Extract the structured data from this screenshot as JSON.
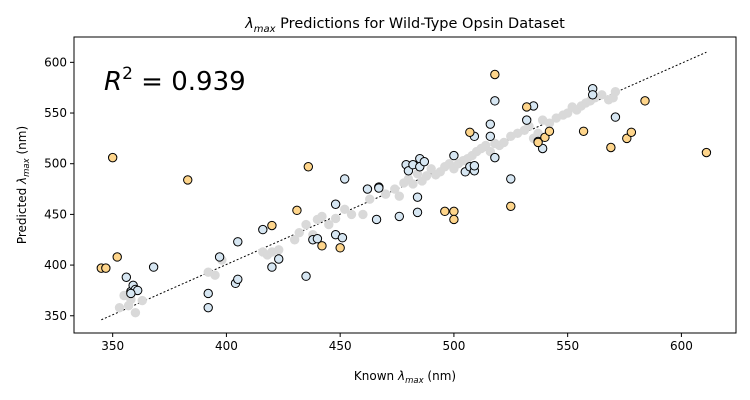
{
  "chart_data": {
    "type": "scatter",
    "title": "λmax Predictions for Wild-Type Opsin Dataset",
    "title_base": "λ",
    "title_sub": "max",
    "title_rest": " Predictions for Wild-Type Opsin Dataset",
    "xlabel": "Known λmax (nm)",
    "xlabel_parts": {
      "pre": "Known ",
      "base": "λ",
      "sub": "max",
      "post": " (nm)"
    },
    "ylabel": "Predicted λmax (nm)",
    "ylabel_parts": {
      "pre": "Predicted ",
      "base": "λ",
      "sub": "max",
      "post": " (nm)"
    },
    "xlim": [
      333,
      624
    ],
    "ylim": [
      333,
      625
    ],
    "x_ticks": [
      350,
      400,
      450,
      500,
      550,
      600
    ],
    "y_ticks": [
      350,
      400,
      450,
      500,
      550,
      600
    ],
    "grid": false,
    "annotation": {
      "base": "R",
      "sup": "2",
      "rest": " = 0.939"
    },
    "reference_line": {
      "style": "dotted",
      "color": "#000000",
      "points": [
        [
          345,
          346
        ],
        [
          611,
          610
        ]
      ]
    },
    "series": [
      {
        "color": "#d9d9d9",
        "edge": "#d9d9d9",
        "points": [
          [
            353,
            358
          ],
          [
            357,
            360
          ],
          [
            360,
            353
          ],
          [
            363,
            365
          ],
          [
            358,
            366
          ],
          [
            355,
            370
          ],
          [
            392,
            393
          ],
          [
            395,
            390
          ],
          [
            398,
            405
          ],
          [
            416,
            413
          ],
          [
            418,
            410
          ],
          [
            420,
            413
          ],
          [
            423,
            415
          ],
          [
            430,
            425
          ],
          [
            432,
            432
          ],
          [
            435,
            440
          ],
          [
            438,
            430
          ],
          [
            440,
            445
          ],
          [
            442,
            448
          ],
          [
            445,
            440
          ],
          [
            448,
            446
          ],
          [
            452,
            455
          ],
          [
            455,
            450
          ],
          [
            460,
            450
          ],
          [
            463,
            465
          ],
          [
            470,
            470
          ],
          [
            474,
            475
          ],
          [
            476,
            468
          ],
          [
            478,
            481
          ],
          [
            480,
            485
          ],
          [
            482,
            480
          ],
          [
            484,
            490
          ],
          [
            486,
            483
          ],
          [
            488,
            488
          ],
          [
            490,
            495
          ],
          [
            492,
            489
          ],
          [
            494,
            492
          ],
          [
            496,
            497
          ],
          [
            498,
            500
          ],
          [
            500,
            495
          ],
          [
            502,
            500
          ],
          [
            504,
            503
          ],
          [
            506,
            505
          ],
          [
            508,
            508
          ],
          [
            510,
            512
          ],
          [
            512,
            515
          ],
          [
            514,
            518
          ],
          [
            516,
            512
          ],
          [
            518,
            520
          ],
          [
            520,
            518
          ],
          [
            522,
            521
          ],
          [
            525,
            527
          ],
          [
            528,
            530
          ],
          [
            531,
            533
          ],
          [
            533,
            537
          ],
          [
            535,
            525
          ],
          [
            537,
            530
          ],
          [
            539,
            543
          ],
          [
            542,
            540
          ],
          [
            545,
            545
          ],
          [
            548,
            548
          ],
          [
            550,
            550
          ],
          [
            552,
            556
          ],
          [
            554,
            553
          ],
          [
            556,
            557
          ],
          [
            558,
            560
          ],
          [
            560,
            562
          ],
          [
            562,
            565
          ],
          [
            565,
            568
          ],
          [
            568,
            563
          ],
          [
            570,
            565
          ],
          [
            571,
            571
          ]
        ]
      },
      {
        "color": "#d6e6f2",
        "edge": "#000000",
        "points": [
          [
            356,
            388
          ],
          [
            358,
            374
          ],
          [
            359,
            380
          ],
          [
            360,
            376
          ],
          [
            361,
            375
          ],
          [
            358,
            372
          ],
          [
            368,
            398
          ],
          [
            392,
            372
          ],
          [
            392,
            358
          ],
          [
            397,
            408
          ],
          [
            404,
            382
          ],
          [
            405,
            386
          ],
          [
            405,
            423
          ],
          [
            416,
            435
          ],
          [
            420,
            398
          ],
          [
            423,
            406
          ],
          [
            435,
            389
          ],
          [
            438,
            425
          ],
          [
            440,
            426
          ],
          [
            448,
            460
          ],
          [
            448,
            430
          ],
          [
            451,
            427
          ],
          [
            452,
            485
          ],
          [
            462,
            475
          ],
          [
            466,
            445
          ],
          [
            467,
            477
          ],
          [
            467,
            476
          ],
          [
            476,
            448
          ],
          [
            479,
            499
          ],
          [
            480,
            493
          ],
          [
            482,
            499
          ],
          [
            484,
            467
          ],
          [
            484,
            452
          ],
          [
            485,
            505
          ],
          [
            485,
            497
          ],
          [
            487,
            502
          ],
          [
            500,
            508
          ],
          [
            505,
            492
          ],
          [
            507,
            497
          ],
          [
            509,
            493
          ],
          [
            509,
            498
          ],
          [
            509,
            527
          ],
          [
            516,
            539
          ],
          [
            516,
            527
          ],
          [
            518,
            562
          ],
          [
            518,
            506
          ],
          [
            525,
            485
          ],
          [
            532,
            543
          ],
          [
            535,
            557
          ],
          [
            537,
            522
          ],
          [
            539,
            515
          ],
          [
            561,
            574
          ],
          [
            561,
            568
          ],
          [
            571,
            546
          ]
        ]
      },
      {
        "color": "#fed58b",
        "edge": "#000000",
        "points": [
          [
            345,
            397
          ],
          [
            347,
            397
          ],
          [
            350,
            506
          ],
          [
            352,
            408
          ],
          [
            383,
            484
          ],
          [
            420,
            439
          ],
          [
            431,
            454
          ],
          [
            436,
            497
          ],
          [
            442,
            419
          ],
          [
            450,
            417
          ],
          [
            496,
            453
          ],
          [
            500,
            453
          ],
          [
            500,
            445
          ],
          [
            507,
            531
          ],
          [
            518,
            588
          ],
          [
            525,
            458
          ],
          [
            532,
            556
          ],
          [
            537,
            521
          ],
          [
            540,
            526
          ],
          [
            542,
            532
          ],
          [
            557,
            532
          ],
          [
            569,
            516
          ],
          [
            576,
            525
          ],
          [
            578,
            531
          ],
          [
            584,
            562
          ],
          [
            611,
            511
          ]
        ]
      }
    ]
  }
}
